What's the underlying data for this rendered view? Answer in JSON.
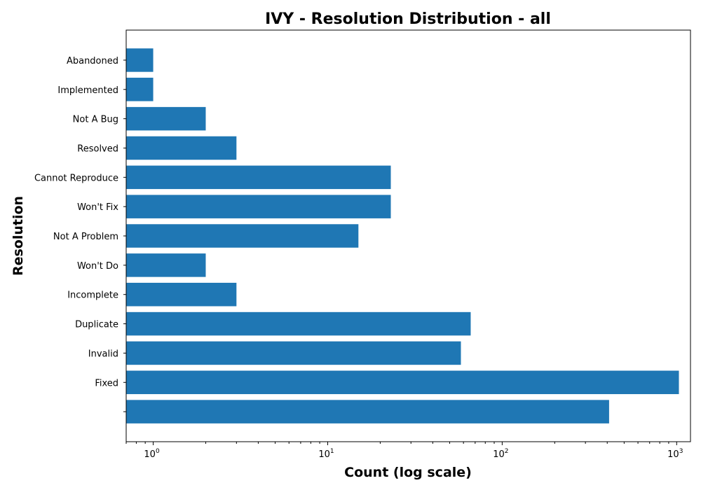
{
  "chart_data": {
    "type": "bar",
    "orientation": "horizontal",
    "title": "IVY - Resolution Distribution - all",
    "xlabel": "Count (log scale)",
    "ylabel": "Resolution",
    "xscale": "log",
    "xlim": [
      0.7,
      1200
    ],
    "x_ticks": [
      {
        "base": "10",
        "exp": "0",
        "value": 1
      },
      {
        "base": "10",
        "exp": "1",
        "value": 10
      },
      {
        "base": "10",
        "exp": "2",
        "value": 100
      },
      {
        "base": "10",
        "exp": "3",
        "value": 1000
      }
    ],
    "categories": [
      "Abandoned",
      "Implemented",
      "Not A Bug",
      "Resolved",
      "Cannot Reproduce",
      "Won't Fix",
      "Not A Problem",
      "Won't Do",
      "Incomplete",
      "Duplicate",
      "Invalid",
      "Fixed",
      ""
    ],
    "values": [
      1,
      1,
      2,
      3,
      23,
      23,
      15,
      2,
      3,
      66,
      58,
      1030,
      410
    ],
    "grid": false,
    "bar_color": "#1f77b4"
  }
}
